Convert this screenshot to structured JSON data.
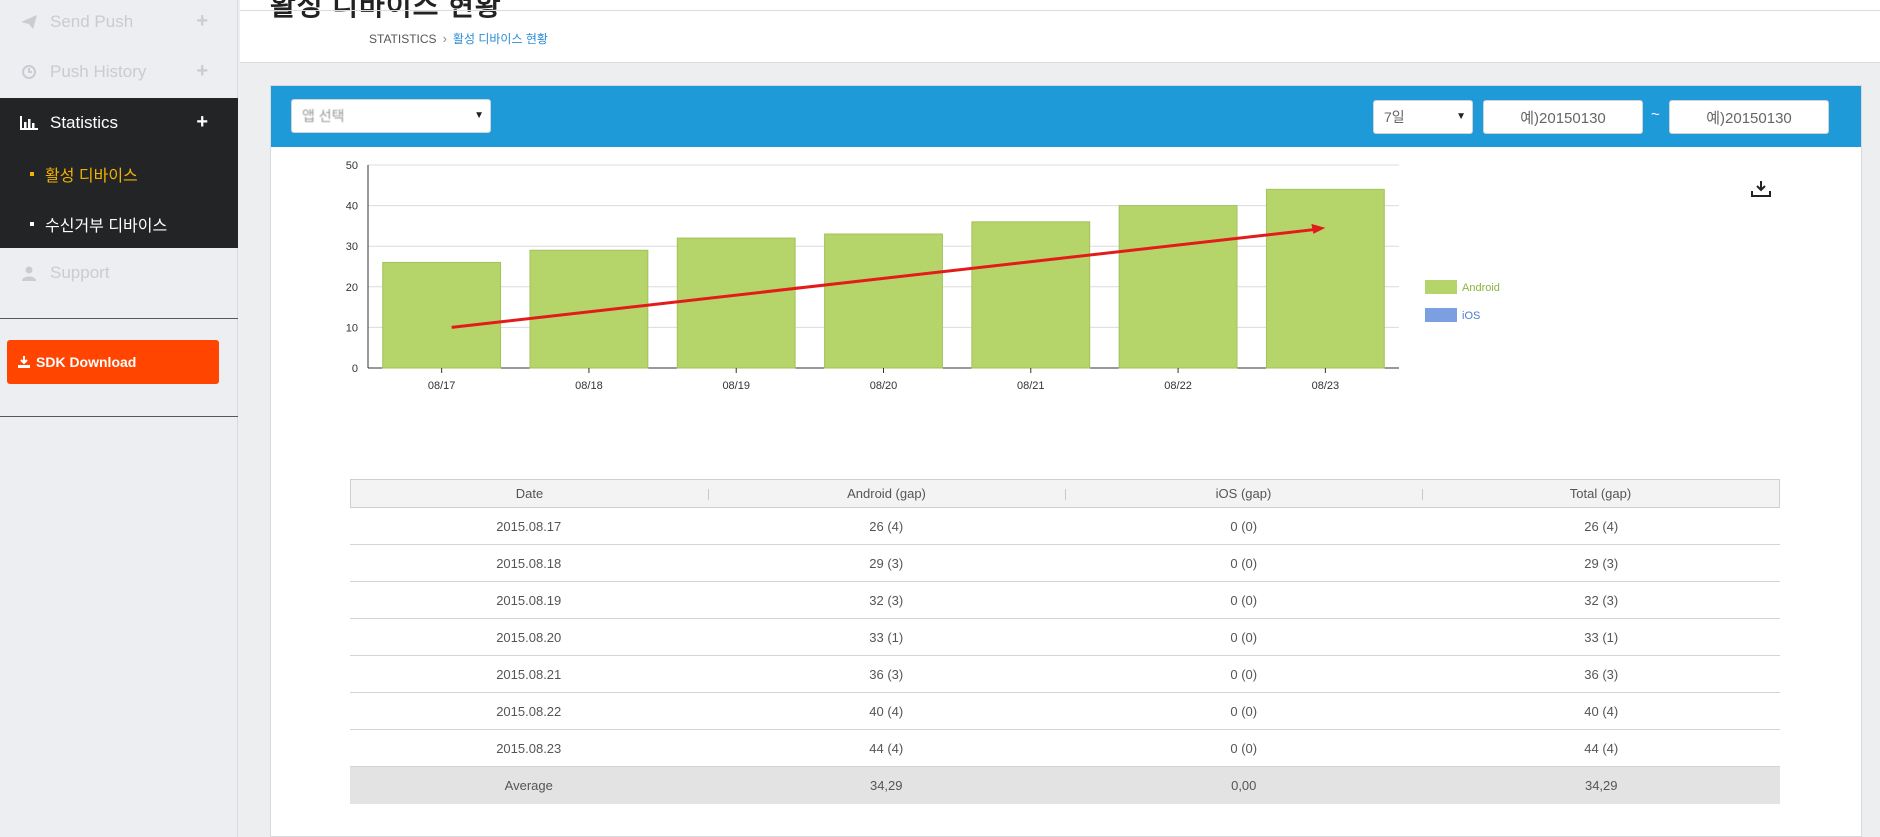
{
  "page": {
    "title": "활성 디바이스 현황",
    "breadcrumb": [
      "STATISTICS",
      "활성 디바이스 현황"
    ]
  },
  "sidebar": {
    "items": [
      {
        "label": "Send Push",
        "icon": "paper-plane-icon"
      },
      {
        "label": "Push History",
        "icon": "history-icon"
      },
      {
        "label": "Statistics",
        "icon": "bar-chart-icon",
        "active": true
      },
      {
        "label": "Support",
        "icon": "user-icon"
      }
    ],
    "subitems": [
      {
        "label": "활성 디바이스",
        "active": true
      },
      {
        "label": "수신거부 디바이스",
        "active": false
      }
    ],
    "sdk_label": "SDK Download"
  },
  "filters": {
    "app_select": "앱 선택",
    "period_select": "7일",
    "date_from_placeholder": "예)20150130",
    "date_to_placeholder": "예)20150130",
    "range_sep": "~"
  },
  "colors": {
    "android": "#b5d56a",
    "ios": "#7b9fe0",
    "accent_bar": "#1e9ad9",
    "sdk_button": "#ff4500",
    "trend_arrow": "#e31b1b"
  },
  "chart_data": {
    "type": "bar",
    "categories": [
      "08/17",
      "08/18",
      "08/19",
      "08/20",
      "08/21",
      "08/22",
      "08/23"
    ],
    "series": [
      {
        "name": "Android",
        "values": [
          26,
          29,
          32,
          33,
          36,
          40,
          44
        ]
      },
      {
        "name": "iOS",
        "values": [
          0,
          0,
          0,
          0,
          0,
          0,
          0
        ]
      }
    ],
    "ylim": [
      0,
      50
    ],
    "yticks": [
      0,
      10,
      20,
      30,
      40,
      50
    ],
    "grid": true,
    "legend": "right",
    "annotation": {
      "type": "trend-arrow",
      "from": {
        "x": "08/17",
        "y": 10
      },
      "to": {
        "x": "08/23",
        "y": 34.5
      }
    }
  },
  "table": {
    "headers": [
      "Date",
      "Android (gap)",
      "iOS (gap)",
      "Total (gap)"
    ],
    "rows": [
      [
        "2015.08.17",
        "26 (4)",
        "0 (0)",
        "26 (4)"
      ],
      [
        "2015.08.18",
        "29 (3)",
        "0 (0)",
        "29 (3)"
      ],
      [
        "2015.08.19",
        "32 (3)",
        "0 (0)",
        "32 (3)"
      ],
      [
        "2015.08.20",
        "33 (1)",
        "0 (0)",
        "33 (1)"
      ],
      [
        "2015.08.21",
        "36 (3)",
        "0 (0)",
        "36 (3)"
      ],
      [
        "2015.08.22",
        "40 (4)",
        "0 (0)",
        "40 (4)"
      ],
      [
        "2015.08.23",
        "44 (4)",
        "0 (0)",
        "44 (4)"
      ]
    ],
    "footer": [
      "Average",
      "34,29",
      "0,00",
      "34,29"
    ]
  }
}
